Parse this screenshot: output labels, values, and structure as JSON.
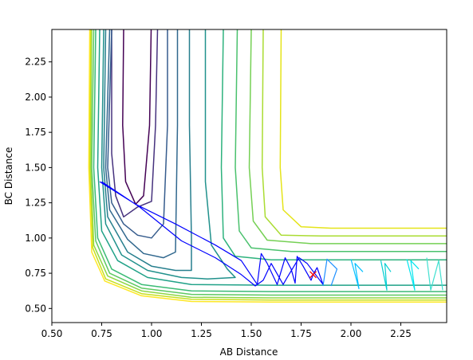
{
  "chart_data": {
    "type": "contour",
    "title": "",
    "xlabel": "AB Distance",
    "ylabel": "BC Distance",
    "xlim": [
      0.5,
      2.48
    ],
    "ylim": [
      0.4,
      2.48
    ],
    "xticks": [
      0.5,
      0.75,
      1.0,
      1.25,
      1.5,
      1.75,
      2.0,
      2.25
    ],
    "xtick_labels": [
      "0.50",
      "0.75",
      "1.00",
      "1.25",
      "1.50",
      "1.75",
      "2.00",
      "2.25"
    ],
    "yticks": [
      0.5,
      0.75,
      1.0,
      1.25,
      1.5,
      1.75,
      2.0,
      2.25
    ],
    "ytick_labels": [
      "0.50",
      "0.75",
      "1.00",
      "1.25",
      "1.50",
      "1.75",
      "2.00",
      "2.25"
    ],
    "grid": false,
    "legend": "none",
    "colormap": "viridis",
    "contours": [
      {
        "color": "#440154",
        "points": [
          [
            0.86,
            2.48
          ],
          [
            0.855,
            1.8
          ],
          [
            0.87,
            1.4
          ],
          [
            0.92,
            1.24
          ],
          [
            0.96,
            1.3
          ],
          [
            0.99,
            1.8
          ],
          [
            0.998,
            2.48
          ]
        ]
      },
      {
        "color": "#46327e",
        "points": [
          [
            0.8,
            2.48
          ],
          [
            0.8,
            1.6
          ],
          [
            0.82,
            1.3
          ],
          [
            0.86,
            1.15
          ],
          [
            0.93,
            1.22
          ],
          [
            1.0,
            1.26
          ],
          [
            1.02,
            1.8
          ],
          [
            1.03,
            2.48
          ]
        ]
      },
      {
        "color": "#365c8d",
        "points": [
          [
            0.8,
            2.48
          ],
          [
            0.78,
            1.5
          ],
          [
            0.8,
            1.25
          ],
          [
            0.86,
            1.1
          ],
          [
            0.93,
            1.02
          ],
          [
            1.0,
            1.0
          ],
          [
            1.06,
            1.1
          ],
          [
            1.08,
            1.8
          ],
          [
            1.08,
            2.48
          ]
        ]
      },
      {
        "color": "#31688e",
        "points": [
          [
            0.79,
            2.48
          ],
          [
            0.77,
            1.5
          ],
          [
            0.79,
            1.2
          ],
          [
            0.88,
            0.99
          ],
          [
            0.96,
            0.89
          ],
          [
            1.06,
            0.86
          ],
          [
            1.12,
            0.9
          ],
          [
            1.13,
            1.8
          ],
          [
            1.13,
            2.48
          ]
        ]
      },
      {
        "color": "#277f8e",
        "points": [
          [
            0.77,
            2.48
          ],
          [
            0.76,
            1.5
          ],
          [
            0.78,
            1.15
          ],
          [
            0.88,
            0.9
          ],
          [
            1.0,
            0.8
          ],
          [
            1.12,
            0.77
          ],
          [
            1.2,
            0.77
          ],
          [
            1.2,
            1.0
          ],
          [
            1.19,
            1.8
          ],
          [
            1.19,
            2.48
          ]
        ]
      },
      {
        "color": "#21918c",
        "points": [
          [
            0.76,
            2.48
          ],
          [
            0.75,
            1.5
          ],
          [
            0.77,
            1.1
          ],
          [
            0.85,
            0.88
          ],
          [
            0.98,
            0.77
          ],
          [
            1.15,
            0.72
          ],
          [
            1.28,
            0.71
          ],
          [
            1.42,
            0.72
          ],
          [
            1.38,
            0.78
          ],
          [
            1.3,
            0.95
          ],
          [
            1.27,
            1.4
          ],
          [
            1.27,
            2.48
          ]
        ]
      },
      {
        "color": "#1fa187",
        "points": [
          [
            0.74,
            2.48
          ],
          [
            0.73,
            1.5
          ],
          [
            0.75,
            1.05
          ],
          [
            0.83,
            0.84
          ],
          [
            0.98,
            0.72
          ],
          [
            1.2,
            0.67
          ],
          [
            1.6,
            0.665
          ],
          [
            2.48,
            0.665
          ]
        ]
      },
      {
        "color": "#2db27d",
        "points": [
          [
            1.36,
            2.48
          ],
          [
            1.35,
            1.5
          ],
          [
            1.36,
            1.0
          ],
          [
            1.42,
            0.87
          ],
          [
            1.6,
            0.845
          ],
          [
            2.0,
            0.845
          ],
          [
            2.48,
            0.845
          ]
        ]
      },
      {
        "color": "#3bbb75",
        "points": [
          [
            0.72,
            2.48
          ],
          [
            0.71,
            1.5
          ],
          [
            0.73,
            1.0
          ],
          [
            0.8,
            0.78
          ],
          [
            0.95,
            0.67
          ],
          [
            1.2,
            0.625
          ],
          [
            1.6,
            0.62
          ],
          [
            2.48,
            0.62
          ]
        ]
      },
      {
        "color": "#4ac16d",
        "points": [
          [
            1.43,
            2.48
          ],
          [
            1.42,
            1.5
          ],
          [
            1.44,
            1.05
          ],
          [
            1.5,
            0.93
          ],
          [
            1.7,
            0.905
          ],
          [
            2.48,
            0.905
          ]
        ]
      },
      {
        "color": "#5ec962",
        "points": [
          [
            0.71,
            2.48
          ],
          [
            0.7,
            1.5
          ],
          [
            0.72,
            0.98
          ],
          [
            0.79,
            0.75
          ],
          [
            0.95,
            0.645
          ],
          [
            1.2,
            0.6
          ],
          [
            1.6,
            0.595
          ],
          [
            2.48,
            0.595
          ]
        ]
      },
      {
        "color": "#75d054",
        "points": [
          [
            1.5,
            2.48
          ],
          [
            1.49,
            1.5
          ],
          [
            1.51,
            1.12
          ],
          [
            1.58,
            0.985
          ],
          [
            1.8,
            0.96
          ],
          [
            2.48,
            0.96
          ]
        ]
      },
      {
        "color": "#8fd744",
        "points": [
          [
            0.7,
            2.48
          ],
          [
            0.695,
            1.5
          ],
          [
            0.71,
            0.95
          ],
          [
            0.78,
            0.73
          ],
          [
            0.95,
            0.625
          ],
          [
            1.2,
            0.58
          ],
          [
            1.6,
            0.575
          ],
          [
            2.48,
            0.575
          ]
        ]
      },
      {
        "color": "#aadc32",
        "points": [
          [
            1.56,
            2.48
          ],
          [
            1.555,
            1.5
          ],
          [
            1.57,
            1.15
          ],
          [
            1.65,
            1.02
          ],
          [
            1.85,
            1.015
          ],
          [
            2.48,
            1.015
          ]
        ]
      },
      {
        "color": "#c7e020",
        "points": [
          [
            0.695,
            2.48
          ],
          [
            0.69,
            1.5
          ],
          [
            0.705,
            0.93
          ],
          [
            0.77,
            0.71
          ],
          [
            0.95,
            0.605
          ],
          [
            1.2,
            0.565
          ],
          [
            1.6,
            0.56
          ],
          [
            2.48,
            0.56
          ]
        ]
      },
      {
        "color": "#e5e419",
        "points": [
          [
            1.65,
            2.48
          ],
          [
            1.645,
            1.5
          ],
          [
            1.66,
            1.2
          ],
          [
            1.75,
            1.08
          ],
          [
            1.9,
            1.07
          ],
          [
            2.48,
            1.07
          ]
        ]
      },
      {
        "color": "#fde725",
        "points": [
          [
            0.69,
            2.48
          ],
          [
            0.685,
            1.5
          ],
          [
            0.7,
            0.9
          ],
          [
            0.765,
            0.695
          ],
          [
            0.95,
            0.59
          ],
          [
            1.2,
            0.55
          ],
          [
            1.6,
            0.545
          ],
          [
            2.48,
            0.545
          ]
        ]
      }
    ],
    "trajectory": {
      "color": "#0000ff",
      "points": [
        [
          0.74,
          1.4
        ],
        [
          0.92,
          1.24
        ],
        [
          1.12,
          1.1
        ],
        [
          1.32,
          0.95
        ],
        [
          1.45,
          0.84
        ],
        [
          1.53,
          0.67
        ],
        [
          1.55,
          0.89
        ],
        [
          1.58,
          0.82
        ],
        [
          1.63,
          0.67
        ],
        [
          1.67,
          0.86
        ],
        [
          1.7,
          0.78
        ],
        [
          1.72,
          0.68
        ],
        [
          1.73,
          0.87
        ],
        [
          1.76,
          0.8
        ],
        [
          1.8,
          0.7
        ],
        [
          1.81,
          0.74
        ],
        [
          1.83,
          0.79
        ],
        [
          1.86,
          0.67
        ],
        [
          1.78,
          0.82
        ],
        [
          1.74,
          0.86
        ],
        [
          1.68,
          0.72
        ],
        [
          1.66,
          0.67
        ],
        [
          1.6,
          0.82
        ],
        [
          1.56,
          0.7
        ],
        [
          1.52,
          0.66
        ],
        [
          1.45,
          0.74
        ],
        [
          1.32,
          0.86
        ],
        [
          1.15,
          0.98
        ],
        [
          0.94,
          1.22
        ],
        [
          0.75,
          1.4
        ]
      ]
    },
    "cyan_loops": [
      {
        "color": "#1e90ff",
        "points": [
          [
            1.86,
            0.66
          ],
          [
            1.88,
            0.85
          ],
          [
            1.93,
            0.78
          ],
          [
            1.9,
            0.66
          ]
        ]
      },
      {
        "color": "#00bfff",
        "points": [
          [
            2.0,
            0.85
          ],
          [
            2.04,
            0.64
          ],
          [
            2.02,
            0.82
          ],
          [
            2.06,
            0.76
          ]
        ]
      },
      {
        "color": "#00ced1",
        "points": [
          [
            2.15,
            0.84
          ],
          [
            2.18,
            0.63
          ],
          [
            2.17,
            0.82
          ],
          [
            2.2,
            0.76
          ]
        ]
      },
      {
        "color": "#00e5ee",
        "points": [
          [
            2.28,
            0.85
          ],
          [
            2.32,
            0.63
          ],
          [
            2.3,
            0.84
          ],
          [
            2.34,
            0.78
          ]
        ]
      },
      {
        "color": "#40e0d0",
        "points": [
          [
            2.38,
            0.86
          ],
          [
            2.4,
            0.63
          ],
          [
            2.44,
            0.84
          ],
          [
            2.46,
            0.63
          ]
        ]
      }
    ],
    "marker": {
      "x": 1.81,
      "y": 0.74,
      "symbol": "x",
      "color": "#ff0000"
    }
  }
}
